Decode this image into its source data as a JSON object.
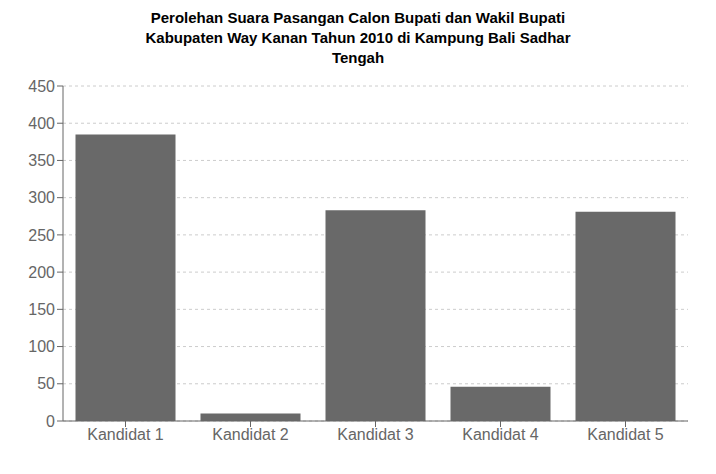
{
  "chart_data": {
    "type": "bar",
    "title": "Perolehan Suara Pasangan Calon Bupati dan Wakil Bupati\nKabupaten Way Kanan Tahun 2010 di Kampung Bali Sadhar\nTengah",
    "categories": [
      "Kandidat 1",
      "Kandidat 2",
      "Kandidat 3",
      "Kandidat 4",
      "Kandidat 5"
    ],
    "values": [
      385,
      10,
      283,
      46,
      281
    ],
    "color": "#696969",
    "ylim": [
      0,
      450
    ],
    "yticks": [
      0,
      50,
      100,
      150,
      200,
      250,
      300,
      350,
      400,
      450
    ],
    "grid": true
  }
}
